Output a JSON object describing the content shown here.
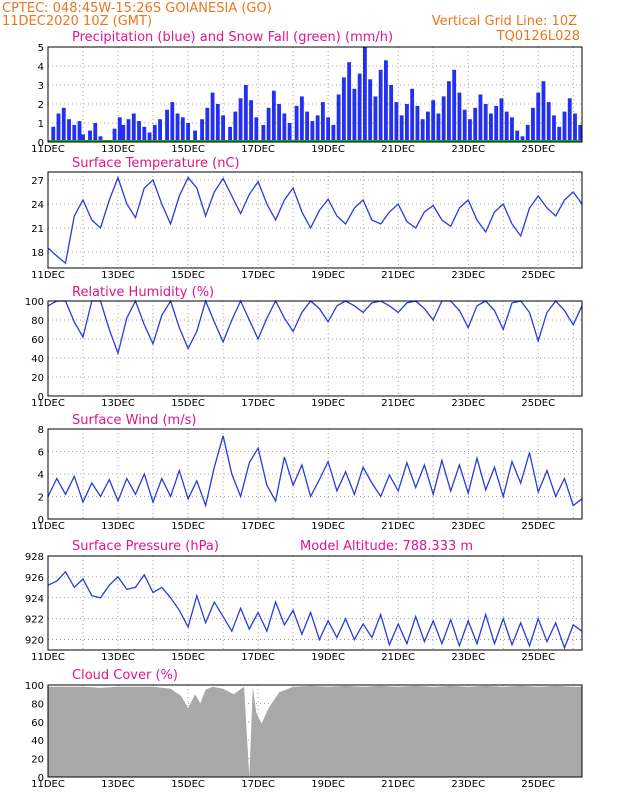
{
  "header": {
    "line1": "CPTEC:   048:45W-15:26S   GOIANESIA (GO)",
    "line2": "11DEC2020 10Z (GMT)",
    "grid_note": "Vertical Grid Line: 10Z",
    "code": "TQ0126L028"
  },
  "colors": {
    "header": "#e8781e",
    "title": "#e0158a",
    "line": "#2b3bd8",
    "bars": "#2430f0",
    "snow": "#18a818",
    "cloud": "#a8a8a8"
  },
  "x_axis_labels": [
    "11DEC",
    "13DEC",
    "15DEC",
    "17DEC",
    "19DEC",
    "21DEC",
    "23DEC",
    "25DEC"
  ],
  "chart_data": [
    {
      "type": "bar",
      "title": "Precipitation (blue) and Snow Fall (green) (mm/h)",
      "ylim": [
        0,
        5
      ],
      "yticks": [
        "0",
        "1",
        "2",
        "3",
        "4",
        "5"
      ],
      "x_days": [
        0.15,
        0.3,
        0.45,
        0.6,
        0.75,
        0.9,
        1.0,
        1.2,
        1.35,
        1.5,
        1.9,
        2.05,
        2.15,
        2.3,
        2.45,
        2.6,
        2.75,
        2.9,
        3.05,
        3.2,
        3.4,
        3.55,
        3.7,
        3.85,
        4.0,
        4.2,
        4.4,
        4.55,
        4.7,
        4.85,
        5.0,
        5.2,
        5.35,
        5.5,
        5.65,
        5.8,
        5.95,
        6.15,
        6.3,
        6.45,
        6.6,
        6.75,
        6.9,
        7.1,
        7.25,
        7.4,
        7.55,
        7.7,
        7.85,
        8.0,
        8.15,
        8.3,
        8.45,
        8.6,
        8.75,
        8.9,
        9.05,
        9.2,
        9.35,
        9.5,
        9.65,
        9.8,
        9.95,
        10.1,
        10.25,
        10.4,
        10.55,
        10.7,
        10.85,
        11.0,
        11.15,
        11.3,
        11.45,
        11.6,
        11.75,
        11.9,
        12.05,
        12.2,
        12.35,
        12.5,
        12.65,
        12.8,
        12.95,
        13.1,
        13.25,
        13.4,
        13.55,
        13.7,
        13.85,
        14.0,
        14.15,
        14.3,
        14.45,
        14.6,
        14.75,
        14.9,
        15.05,
        15.2
      ],
      "values": [
        0.8,
        1.5,
        1.8,
        1.2,
        0.9,
        1.1,
        0.4,
        0.6,
        1.0,
        0.3,
        0.7,
        1.3,
        0.9,
        1.2,
        1.5,
        1.1,
        0.8,
        0.5,
        0.9,
        1.2,
        1.7,
        2.1,
        1.5,
        1.3,
        1.0,
        0.6,
        1.2,
        1.8,
        2.6,
        2.0,
        1.4,
        0.8,
        1.6,
        2.3,
        3.0,
        2.2,
        1.3,
        0.9,
        1.8,
        2.7,
        2.0,
        1.5,
        1.0,
        1.9,
        2.4,
        1.6,
        1.1,
        1.4,
        2.1,
        1.3,
        0.9,
        2.5,
        3.4,
        4.2,
        2.8,
        3.6,
        5.0,
        3.3,
        2.4,
        3.8,
        4.3,
        3.0,
        2.1,
        1.4,
        2.0,
        2.8,
        1.9,
        1.2,
        1.6,
        2.2,
        1.5,
        2.4,
        3.2,
        3.8,
        2.6,
        1.7,
        1.2,
        1.8,
        2.5,
        2.0,
        1.5,
        1.9,
        2.3,
        1.6,
        1.3,
        0.6,
        0.3,
        0.9,
        1.8,
        2.6,
        3.2,
        2.1,
        1.4,
        0.8,
        1.6,
        2.3,
        1.5,
        0.9
      ],
      "snow": 0
    },
    {
      "type": "line",
      "title": "Surface Temperature (nC)",
      "ylim": [
        16,
        28
      ],
      "yticks": [
        "18",
        "21",
        "24",
        "27"
      ],
      "x_days": [
        0,
        0.25,
        0.5,
        0.75,
        1.0,
        1.25,
        1.5,
        1.75,
        2.0,
        2.25,
        2.5,
        2.75,
        3.0,
        3.25,
        3.5,
        3.75,
        4.0,
        4.25,
        4.5,
        4.75,
        5.0,
        5.25,
        5.5,
        5.75,
        6.0,
        6.25,
        6.5,
        6.75,
        7.0,
        7.25,
        7.5,
        7.75,
        8.0,
        8.25,
        8.5,
        8.75,
        9.0,
        9.25,
        9.5,
        9.75,
        10.0,
        10.25,
        10.5,
        10.75,
        11.0,
        11.25,
        11.5,
        11.75,
        12.0,
        12.25,
        12.5,
        12.75,
        13.0,
        13.25,
        13.5,
        13.75,
        14.0,
        14.25,
        14.5,
        14.75,
        15.0,
        15.25
      ],
      "values": [
        18.5,
        17.5,
        16.6,
        22.5,
        24.5,
        22.0,
        21.0,
        24.5,
        27.3,
        24.0,
        22.3,
        26.0,
        27.0,
        24.0,
        21.5,
        25.0,
        27.3,
        26.0,
        22.5,
        25.5,
        27.2,
        25.0,
        22.8,
        25.2,
        26.8,
        24.0,
        22.0,
        24.5,
        26.0,
        23.0,
        21.0,
        23.2,
        24.6,
        22.5,
        21.5,
        23.5,
        24.5,
        22.0,
        21.5,
        23.0,
        24.0,
        21.8,
        21.0,
        23.0,
        23.8,
        22.0,
        21.2,
        23.5,
        24.5,
        22.0,
        20.5,
        23.0,
        24.0,
        21.5,
        20.0,
        23.5,
        25.0,
        23.5,
        22.5,
        24.5,
        25.5,
        24.0
      ]
    },
    {
      "type": "line",
      "title": "Relative Humidity (%)",
      "ylim": [
        0,
        100
      ],
      "yticks": [
        "0",
        "20",
        "40",
        "60",
        "80",
        "100"
      ],
      "x_days": [
        0,
        0.25,
        0.5,
        0.75,
        1.0,
        1.25,
        1.5,
        1.75,
        2.0,
        2.25,
        2.5,
        2.75,
        3.0,
        3.25,
        3.5,
        3.75,
        4.0,
        4.25,
        4.5,
        4.75,
        5.0,
        5.25,
        5.5,
        5.75,
        6.0,
        6.25,
        6.5,
        6.75,
        7.0,
        7.25,
        7.5,
        7.75,
        8.0,
        8.25,
        8.5,
        8.75,
        9.0,
        9.25,
        9.5,
        9.75,
        10.0,
        10.25,
        10.5,
        10.75,
        11.0,
        11.25,
        11.5,
        11.75,
        12.0,
        12.25,
        12.5,
        12.75,
        13.0,
        13.25,
        13.5,
        13.75,
        14.0,
        14.25,
        14.5,
        14.75,
        15.0,
        15.25
      ],
      "values": [
        95,
        100,
        100,
        78,
        62,
        100,
        100,
        70,
        45,
        82,
        100,
        75,
        55,
        85,
        100,
        72,
        50,
        68,
        100,
        78,
        57,
        80,
        100,
        80,
        60,
        82,
        100,
        82,
        68,
        88,
        100,
        92,
        78,
        95,
        100,
        95,
        88,
        98,
        100,
        95,
        88,
        98,
        100,
        92,
        80,
        100,
        100,
        90,
        72,
        95,
        100,
        90,
        70,
        98,
        100,
        88,
        58,
        88,
        100,
        90,
        75,
        95
      ]
    },
    {
      "type": "line",
      "title": "Surface Wind (m/s)",
      "ylim": [
        0,
        8
      ],
      "yticks": [
        "0",
        "2",
        "4",
        "6",
        "8"
      ],
      "x_days": [
        0,
        0.25,
        0.5,
        0.75,
        1.0,
        1.25,
        1.5,
        1.75,
        2.0,
        2.25,
        2.5,
        2.75,
        3.0,
        3.25,
        3.5,
        3.75,
        4.0,
        4.25,
        4.5,
        4.75,
        5.0,
        5.25,
        5.5,
        5.75,
        6.0,
        6.25,
        6.5,
        6.75,
        7.0,
        7.25,
        7.5,
        7.75,
        8.0,
        8.25,
        8.5,
        8.75,
        9.0,
        9.25,
        9.5,
        9.75,
        10.0,
        10.25,
        10.5,
        10.75,
        11.0,
        11.25,
        11.5,
        11.75,
        12.0,
        12.25,
        12.5,
        12.75,
        13.0,
        13.25,
        13.5,
        13.75,
        14.0,
        14.25,
        14.5,
        14.75,
        15.0,
        15.25
      ],
      "values": [
        2.0,
        3.6,
        2.2,
        3.8,
        1.5,
        3.2,
        2.0,
        3.5,
        1.6,
        3.6,
        2.2,
        4.0,
        1.5,
        3.6,
        2.0,
        4.3,
        1.8,
        3.4,
        1.2,
        4.6,
        7.4,
        4.0,
        2.0,
        5.0,
        6.3,
        3.0,
        1.6,
        5.5,
        3.0,
        4.8,
        2.0,
        3.5,
        5.1,
        2.5,
        4.2,
        2.2,
        4.6,
        3.2,
        2.0,
        3.9,
        2.5,
        5.0,
        2.8,
        4.8,
        2.2,
        5.2,
        2.5,
        4.8,
        2.3,
        5.4,
        2.6,
        4.6,
        2.0,
        5.1,
        3.2,
        5.9,
        2.4,
        4.3,
        2.0,
        3.6,
        1.2,
        1.8
      ]
    },
    {
      "type": "line",
      "title": "Surface Pressure (hPa)",
      "annotation": "Model Altitude: 788.333 m",
      "ylim": [
        919,
        928
      ],
      "yticks": [
        "920",
        "922",
        "924",
        "926",
        "928"
      ],
      "x_days": [
        0,
        0.25,
        0.5,
        0.75,
        1.0,
        1.25,
        1.5,
        1.75,
        2.0,
        2.25,
        2.5,
        2.75,
        3.0,
        3.25,
        3.5,
        3.75,
        4.0,
        4.25,
        4.5,
        4.75,
        5.0,
        5.25,
        5.5,
        5.75,
        6.0,
        6.25,
        6.5,
        6.75,
        7.0,
        7.25,
        7.5,
        7.75,
        8.0,
        8.25,
        8.5,
        8.75,
        9.0,
        9.25,
        9.5,
        9.75,
        10.0,
        10.25,
        10.5,
        10.75,
        11.0,
        11.25,
        11.5,
        11.75,
        12.0,
        12.25,
        12.5,
        12.75,
        13.0,
        13.25,
        13.5,
        13.75,
        14.0,
        14.25,
        14.5,
        14.75,
        15.0,
        15.25
      ],
      "values": [
        925.2,
        925.6,
        926.5,
        925.0,
        925.8,
        924.2,
        924.0,
        925.2,
        926.0,
        924.8,
        925.0,
        926.2,
        924.5,
        925.0,
        924.0,
        922.8,
        921.2,
        924.2,
        921.6,
        923.6,
        922.2,
        920.8,
        923.0,
        921.0,
        922.6,
        920.8,
        923.6,
        921.4,
        922.8,
        920.5,
        922.6,
        920.0,
        921.8,
        920.2,
        922.0,
        920.0,
        921.5,
        920.2,
        922.4,
        919.5,
        921.5,
        919.6,
        922.2,
        919.8,
        921.8,
        919.6,
        921.9,
        919.4,
        921.8,
        919.6,
        922.4,
        919.6,
        922.0,
        919.5,
        921.6,
        919.4,
        922.0,
        919.8,
        921.6,
        919.2,
        921.4,
        920.8
      ]
    },
    {
      "type": "area",
      "title": "Cloud Cover (%)",
      "ylim": [
        0,
        100
      ],
      "yticks": [
        "0",
        "20",
        "40",
        "60",
        "80",
        "100"
      ],
      "x_days": [
        0,
        0.5,
        1.0,
        1.5,
        2.0,
        2.5,
        3.0,
        3.5,
        3.8,
        4.0,
        4.2,
        4.35,
        4.5,
        4.7,
        5.0,
        5.3,
        5.6,
        5.75,
        5.85,
        5.95,
        6.1,
        6.3,
        6.6,
        7.0,
        7.5,
        8.0,
        8.5,
        9.0,
        9.5,
        10.0,
        10.5,
        11.0,
        11.5,
        12.0,
        12.5,
        13.0,
        13.5,
        14.0,
        14.5,
        15.0,
        15.25
      ],
      "values": [
        98,
        98,
        98,
        97,
        98,
        98,
        98,
        96,
        88,
        75,
        90,
        80,
        95,
        98,
        96,
        90,
        98,
        0,
        98,
        70,
        58,
        75,
        92,
        98,
        99,
        98,
        99,
        98,
        99,
        98,
        99,
        98,
        99,
        98,
        99,
        98,
        99,
        98,
        99,
        98,
        98
      ]
    }
  ]
}
